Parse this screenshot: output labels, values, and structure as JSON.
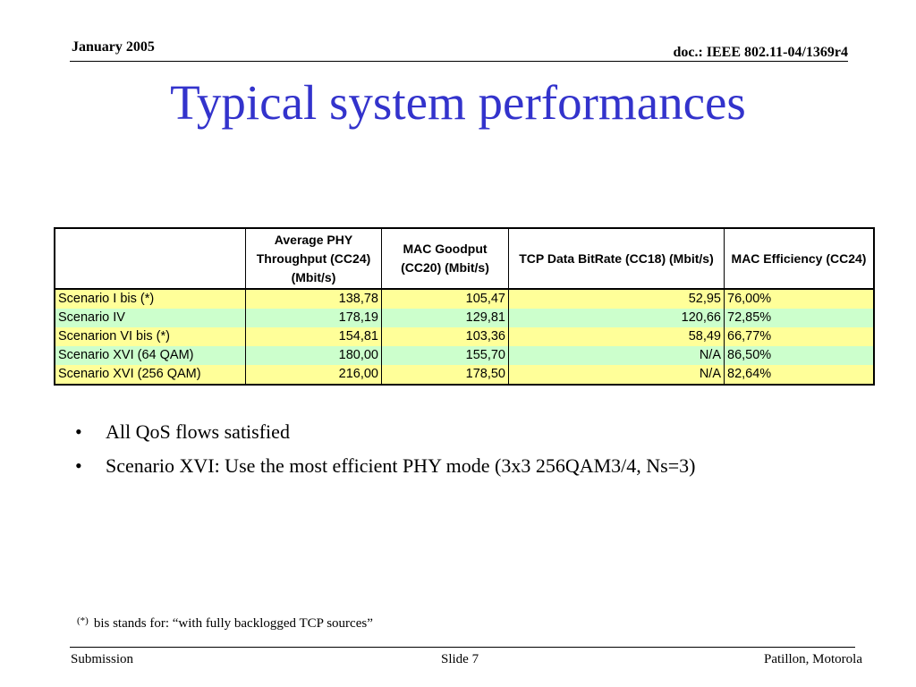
{
  "header": {
    "date": "January 2005",
    "doc": "doc.: IEEE 802.11-04/1369r4"
  },
  "title": "Typical system performances",
  "table": {
    "headers": [
      "",
      "Average PHY Throughput (CC24) (Mbit/s)",
      "MAC Goodput (CC20) (Mbit/s)",
      "TCP Data BitRate (CC18) (Mbit/s)",
      "MAC Efficiency (CC24)"
    ],
    "rows": [
      [
        "Scenario I bis (*)",
        "138,78",
        "105,47",
        "52,95",
        "76,00%"
      ],
      [
        "Scenario IV",
        "178,19",
        "129,81",
        "120,66",
        "72,85%"
      ],
      [
        "Scenarion VI bis (*)",
        "154,81",
        "103,36",
        "58,49",
        "66,77%"
      ],
      [
        "Scenario XVI (64 QAM)",
        "180,00",
        "155,70",
        "N/A",
        "86,50%"
      ],
      [
        "Scenario XVI (256 QAM)",
        "216,00",
        "178,50",
        "N/A",
        "82,64%"
      ]
    ]
  },
  "row_colors": {
    "yellow": "#ffff99",
    "green": "#ccffcc"
  },
  "bullets": [
    "All QoS flows satisfied",
    "Scenario XVI: Use the most efficient PHY mode (3x3 256QAM3/4, Ns=3)"
  ],
  "footnote": {
    "mark": "(*)",
    "text": "bis stands for: “with fully backlogged TCP sources”"
  },
  "footer": {
    "left": "Submission",
    "center": "Slide 7",
    "right": "Patillon, Motorola"
  },
  "title_color": "#3333cc"
}
